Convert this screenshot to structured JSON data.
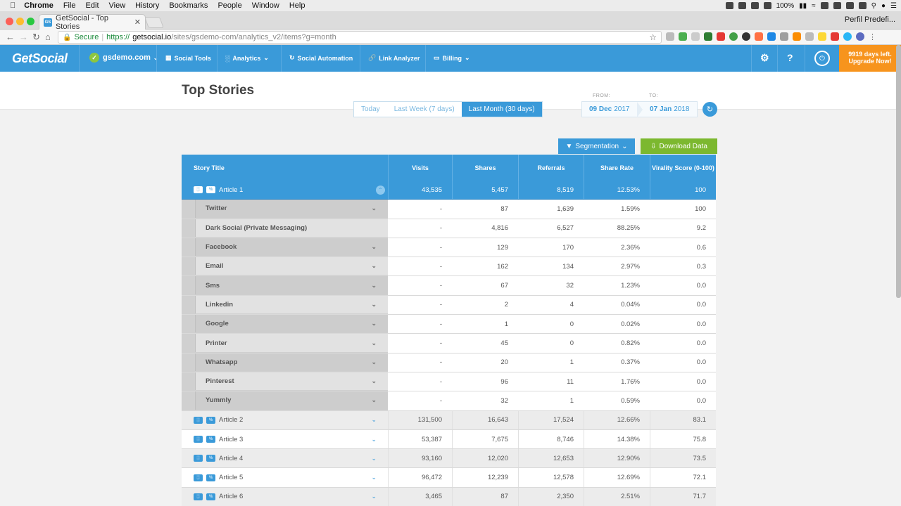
{
  "menubar": {
    "app": "Chrome",
    "items": [
      "File",
      "Edit",
      "View",
      "History",
      "Bookmarks",
      "People",
      "Window",
      "Help"
    ],
    "battery": "100%"
  },
  "browser": {
    "tab_title": "GetSocial - Top Stories",
    "profile": "Perfil Predefi...",
    "secure": "Secure",
    "url_scheme": "https://",
    "url_host": "getsocial.io",
    "url_path": "/sites/gsdemo-com/analytics_v2/items?g=month"
  },
  "app_header": {
    "logo": "GetSocial",
    "site": "gsdemo.com",
    "nav": [
      "Social Tools",
      "Analytics",
      "Social Automation",
      "Link Analyzer",
      "Billing"
    ],
    "upgrade_line1": "9919 days left.",
    "upgrade_line2": "Upgrade Now!"
  },
  "page": {
    "title": "Top Stories",
    "ranges": [
      "Today",
      "Last Week (7 days)",
      "Last Month (30 days)"
    ],
    "active_range": "Last Month (30 days)",
    "from_label": "FROM:",
    "to_label": "TO:",
    "from_date": "09 Dec",
    "from_year": "2017",
    "to_date": "07 Jan",
    "to_year": "2018",
    "segmentation": "Segmentation",
    "download": "Download Data"
  },
  "table": {
    "headers": [
      "Story Title",
      "Visits",
      "Shares",
      "Referrals",
      "Share Rate",
      "Virality Score (0-100)"
    ],
    "expanded_article": {
      "title": "Article 1",
      "visits": "43,535",
      "shares": "5,457",
      "referrals": "8,519",
      "share_rate": "12.53%",
      "virality": "100"
    },
    "sub_rows": [
      {
        "name": "Twitter",
        "visits": "-",
        "shares": "87",
        "referrals": "1,639",
        "share_rate": "1.59%",
        "virality": "100"
      },
      {
        "name": "Dark Social (Private Messaging)",
        "visits": "-",
        "shares": "4,816",
        "referrals": "6,527",
        "share_rate": "88.25%",
        "virality": "9.2"
      },
      {
        "name": "Facebook",
        "visits": "-",
        "shares": "129",
        "referrals": "170",
        "share_rate": "2.36%",
        "virality": "0.6"
      },
      {
        "name": "Email",
        "visits": "-",
        "shares": "162",
        "referrals": "134",
        "share_rate": "2.97%",
        "virality": "0.3"
      },
      {
        "name": "Sms",
        "visits": "-",
        "shares": "67",
        "referrals": "32",
        "share_rate": "1.23%",
        "virality": "0.0"
      },
      {
        "name": "Linkedin",
        "visits": "-",
        "shares": "2",
        "referrals": "4",
        "share_rate": "0.04%",
        "virality": "0.0"
      },
      {
        "name": "Google",
        "visits": "-",
        "shares": "1",
        "referrals": "0",
        "share_rate": "0.02%",
        "virality": "0.0"
      },
      {
        "name": "Printer",
        "visits": "-",
        "shares": "45",
        "referrals": "0",
        "share_rate": "0.82%",
        "virality": "0.0"
      },
      {
        "name": "Whatsapp",
        "visits": "-",
        "shares": "20",
        "referrals": "1",
        "share_rate": "0.37%",
        "virality": "0.0"
      },
      {
        "name": "Pinterest",
        "visits": "-",
        "shares": "96",
        "referrals": "11",
        "share_rate": "1.76%",
        "virality": "0.0"
      },
      {
        "name": "Yummly",
        "visits": "-",
        "shares": "32",
        "referrals": "1",
        "share_rate": "0.59%",
        "virality": "0.0"
      }
    ],
    "articles": [
      {
        "title": "Article 2",
        "visits": "131,500",
        "shares": "16,643",
        "referrals": "17,524",
        "share_rate": "12.66%",
        "virality": "83.1"
      },
      {
        "title": "Article 3",
        "visits": "53,387",
        "shares": "7,675",
        "referrals": "8,746",
        "share_rate": "14.38%",
        "virality": "75.8"
      },
      {
        "title": "Article 4",
        "visits": "93,160",
        "shares": "12,020",
        "referrals": "12,653",
        "share_rate": "12.90%",
        "virality": "73.5"
      },
      {
        "title": "Article 5",
        "visits": "96,472",
        "shares": "12,239",
        "referrals": "12,578",
        "share_rate": "12.69%",
        "virality": "72.1"
      },
      {
        "title": "Article 6",
        "visits": "3,465",
        "shares": "87",
        "referrals": "2,350",
        "share_rate": "2.51%",
        "virality": "71.7"
      }
    ]
  }
}
